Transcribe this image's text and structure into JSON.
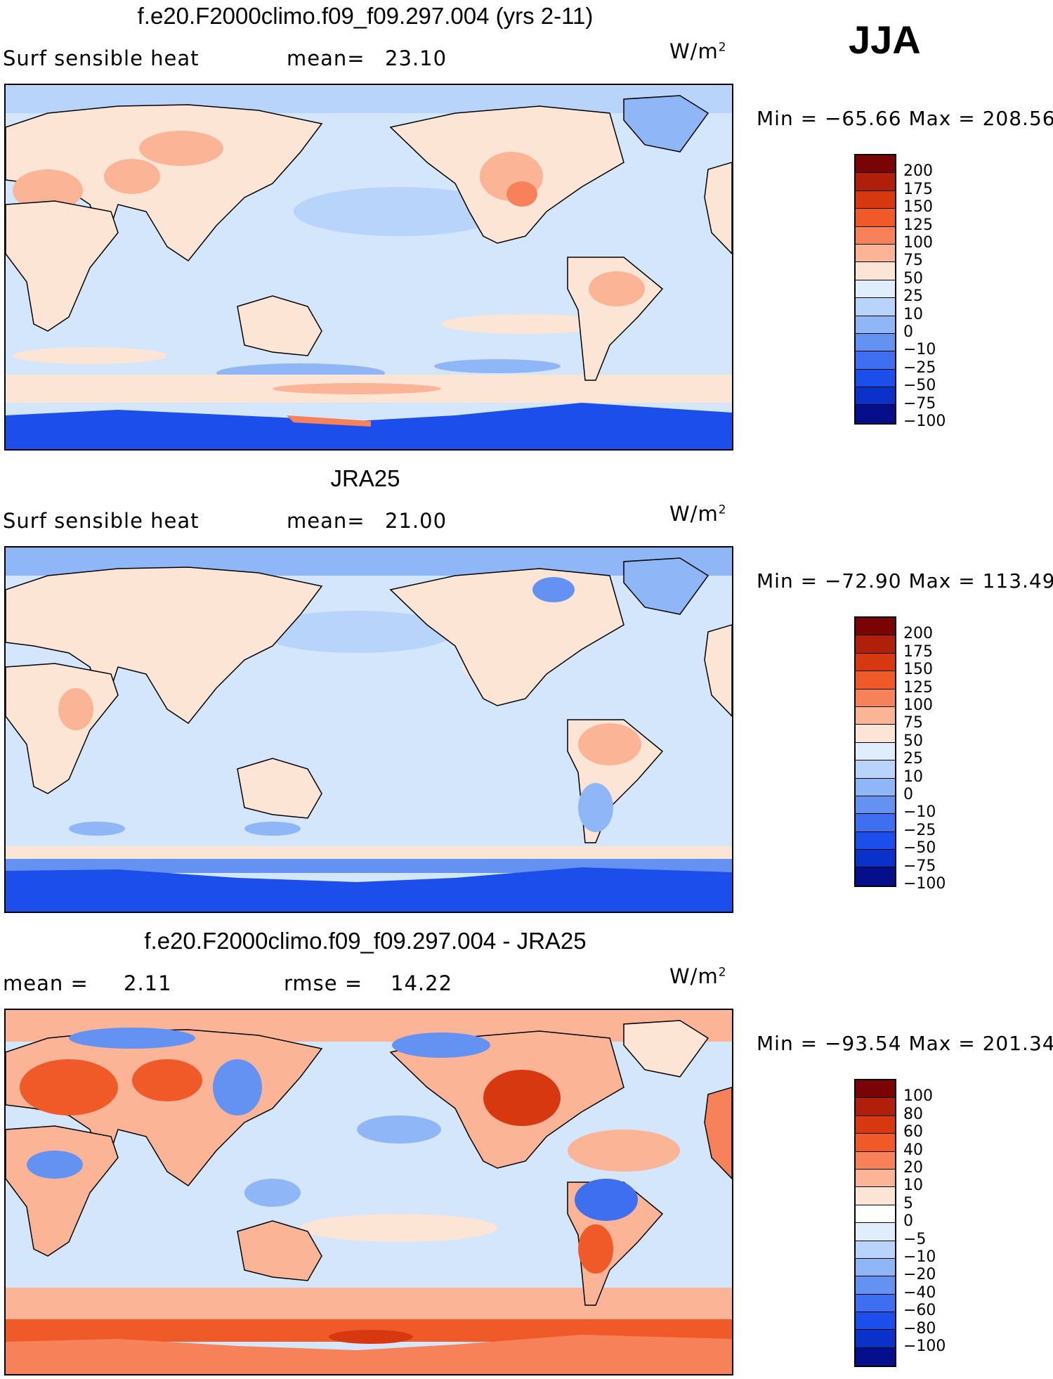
{
  "season": "JJA",
  "panels": [
    {
      "title": "f.e20.F2000climo.f09_f09.297.004 (yrs 2-11)",
      "left_label": "Surf sensible heat",
      "mid_label": "mean=",
      "mid_value": "23.10",
      "units_base": "W/m",
      "units_exp": "2",
      "minmax": "Min = −65.66 Max = 208.56",
      "colorbar": {
        "colors": [
          "#7a0403",
          "#b01f0a",
          "#d8380f",
          "#f05a28",
          "#f7825a",
          "#fbb596",
          "#fde5d6",
          "#dfedfc",
          "#b8d4fa",
          "#8fb6f7",
          "#6492f3",
          "#3e6ff0",
          "#1c4eeb",
          "#0a31c9",
          "#050f8c"
        ],
        "labels": [
          "200",
          "175",
          "150",
          "125",
          "100",
          "75",
          "50",
          "25",
          "10",
          "0",
          "−10",
          "−25",
          "−50",
          "−75",
          "−100"
        ]
      }
    },
    {
      "title": "JRA25",
      "left_label": "Surf sensible heat",
      "mid_label": "mean=",
      "mid_value": "21.00",
      "units_base": "W/m",
      "units_exp": "2",
      "minmax": "Min = −72.90 Max = 113.49",
      "colorbar": {
        "colors": [
          "#7a0403",
          "#b01f0a",
          "#d8380f",
          "#f05a28",
          "#f7825a",
          "#fbb596",
          "#fde5d6",
          "#dfedfc",
          "#b8d4fa",
          "#8fb6f7",
          "#6492f3",
          "#3e6ff0",
          "#1c4eeb",
          "#0a31c9",
          "#050f8c"
        ],
        "labels": [
          "200",
          "175",
          "150",
          "125",
          "100",
          "75",
          "50",
          "25",
          "10",
          "0",
          "−10",
          "−25",
          "−50",
          "−75",
          "−100"
        ]
      }
    },
    {
      "title": "f.e20.F2000climo.f09_f09.297.004 - JRA25",
      "left_label": "mean =",
      "left_value": "2.11",
      "mid_label": "rmse =",
      "mid_value": "14.22",
      "units_base": "W/m",
      "units_exp": "2",
      "minmax": "Min = −93.54 Max = 201.34",
      "colorbar": {
        "colors": [
          "#7a0403",
          "#b01f0a",
          "#d8380f",
          "#f05a28",
          "#f7825a",
          "#fbb596",
          "#fde5d6",
          "#ffffff",
          "#dfedfc",
          "#b8d4fa",
          "#8fb6f7",
          "#6492f3",
          "#3e6ff0",
          "#1c4eeb",
          "#0a31c9",
          "#050f8c"
        ],
        "labels": [
          "100",
          "80",
          "60",
          "40",
          "20",
          "10",
          "5",
          "0",
          "−5",
          "−10",
          "−20",
          "−40",
          "−60",
          "−80",
          "−100"
        ]
      }
    }
  ]
}
